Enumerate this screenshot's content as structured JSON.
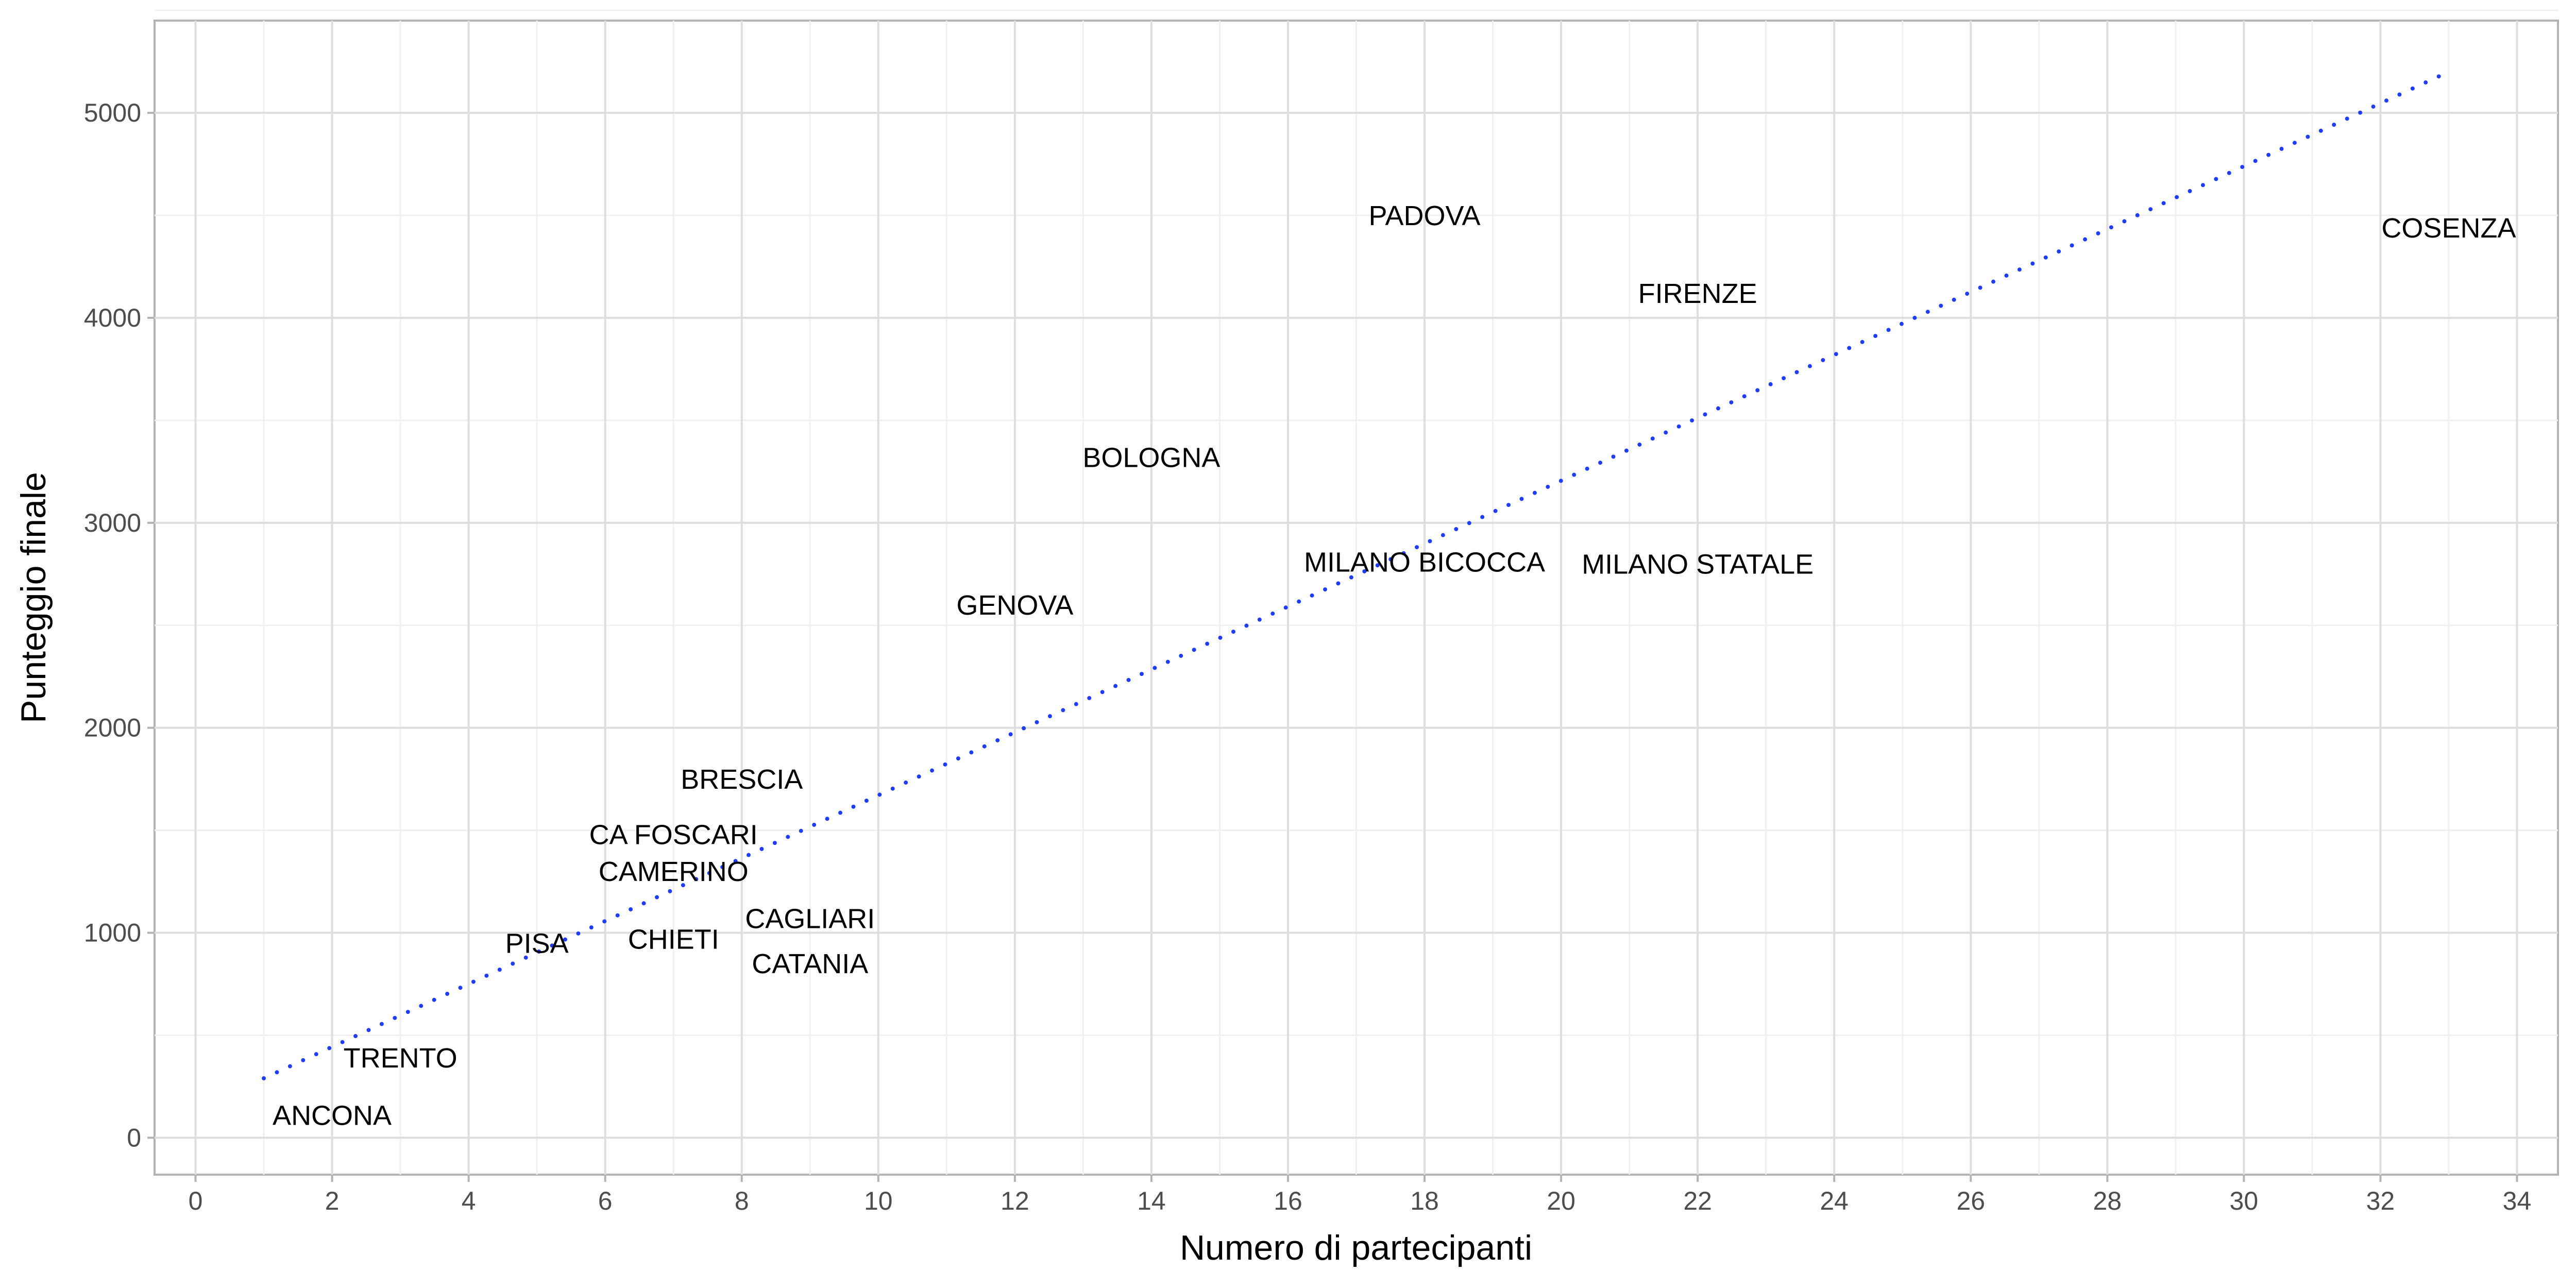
{
  "chart_data": {
    "type": "scatter",
    "title": "",
    "xlabel": "Numero di partecipanti",
    "ylabel": "Punteggio finale",
    "xlim": [
      -0.6,
      34.6
    ],
    "ylim": [
      -180,
      5450
    ],
    "xticks": [
      0,
      2,
      4,
      6,
      8,
      10,
      12,
      14,
      16,
      18,
      20,
      22,
      24,
      26,
      28,
      30,
      32,
      34
    ],
    "yticks": [
      0,
      1000,
      2000,
      3000,
      4000,
      5000
    ],
    "grid": true,
    "legend": "none",
    "label_color": "#000000",
    "points": [
      {
        "label": "ANCONA",
        "x": 2,
        "y": 110
      },
      {
        "label": "TRENTO",
        "x": 3,
        "y": 390
      },
      {
        "label": "PISA",
        "x": 5,
        "y": 950
      },
      {
        "label": "CHIETI",
        "x": 7,
        "y": 970
      },
      {
        "label": "CAMERINO",
        "x": 7,
        "y": 1300
      },
      {
        "label": "CA FOSCARI",
        "x": 7,
        "y": 1480
      },
      {
        "label": "BRESCIA",
        "x": 8,
        "y": 1750
      },
      {
        "label": "CAGLIARI",
        "x": 9,
        "y": 1070
      },
      {
        "label": "CATANIA",
        "x": 9,
        "y": 850
      },
      {
        "label": "GENOVA",
        "x": 12,
        "y": 2600
      },
      {
        "label": "BOLOGNA",
        "x": 14,
        "y": 3320
      },
      {
        "label": "MILANO BICOCCA",
        "x": 18,
        "y": 2810
      },
      {
        "label": "MILANO STATALE",
        "x": 22,
        "y": 2800
      },
      {
        "label": "PADOVA",
        "x": 18,
        "y": 4500
      },
      {
        "label": "FIRENZE",
        "x": 22,
        "y": 4120
      },
      {
        "label": "COSENZA",
        "x": 33,
        "y": 4440
      }
    ],
    "trend": {
      "style": "dotted",
      "color": "#1f3dff",
      "x": [
        1,
        33
      ],
      "y": [
        290,
        5200
      ]
    }
  }
}
